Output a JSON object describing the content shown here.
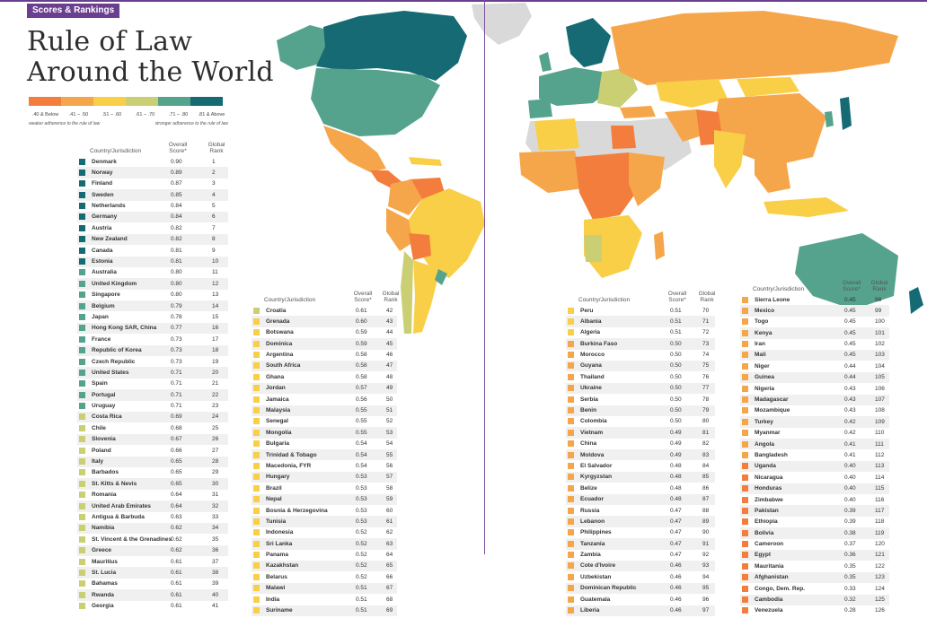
{
  "tag": "Scores & Rankings",
  "title_line1": "Rule of Law",
  "title_line2": "Around the World",
  "legend": {
    "ranges": [
      {
        "label": ".40 & Below",
        "color": "#f37d3c"
      },
      {
        "label": ".41 – .50",
        "color": "#f6a64a"
      },
      {
        "label": ".51 – .60",
        "color": "#f9cf47"
      },
      {
        "label": ".61 – .70",
        "color": "#c9cf72"
      },
      {
        "label": ".71 – .80",
        "color": "#55a38d"
      },
      {
        "label": ".81 & Above",
        "color": "#156a74"
      }
    ],
    "note_left": "weaker adherence to the rule of law",
    "note_right": "stronger adherence to the rule of law"
  },
  "headers": {
    "country": "Country/Jurisdiction",
    "score": "Overall Score*",
    "rank": "Global Rank"
  },
  "columns": [
    [
      [
        "Denmark",
        "0.90",
        "1"
      ],
      [
        "Norway",
        "0.89",
        "2"
      ],
      [
        "Finland",
        "0.87",
        "3"
      ],
      [
        "Sweden",
        "0.85",
        "4"
      ],
      [
        "Netherlands",
        "0.84",
        "5"
      ],
      [
        "Germany",
        "0.84",
        "6"
      ],
      [
        "Austria",
        "0.82",
        "7"
      ],
      [
        "New Zealand",
        "0.82",
        "8"
      ],
      [
        "Canada",
        "0.81",
        "9"
      ],
      [
        "Estonia",
        "0.81",
        "10"
      ],
      [
        "Australia",
        "0.80",
        "11"
      ],
      [
        "United Kingdom",
        "0.80",
        "12"
      ],
      [
        "Singapore",
        "0.80",
        "13"
      ],
      [
        "Belgium",
        "0.79",
        "14"
      ],
      [
        "Japan",
        "0.78",
        "15"
      ],
      [
        "Hong Kong SAR, China",
        "0.77",
        "16"
      ],
      [
        "France",
        "0.73",
        "17"
      ],
      [
        "Republic of Korea",
        "0.73",
        "18"
      ],
      [
        "Czech Republic",
        "0.73",
        "19"
      ],
      [
        "United States",
        "0.71",
        "20"
      ],
      [
        "Spain",
        "0.71",
        "21"
      ],
      [
        "Portugal",
        "0.71",
        "22"
      ],
      [
        "Uruguay",
        "0.71",
        "23"
      ],
      [
        "Costa Rica",
        "0.69",
        "24"
      ],
      [
        "Chile",
        "0.68",
        "25"
      ],
      [
        "Slovenia",
        "0.67",
        "26"
      ],
      [
        "Poland",
        "0.66",
        "27"
      ],
      [
        "Italy",
        "0.65",
        "28"
      ],
      [
        "Barbados",
        "0.65",
        "29"
      ],
      [
        "St. Kitts & Nevis",
        "0.65",
        "30"
      ],
      [
        "Romania",
        "0.64",
        "31"
      ],
      [
        "United Arab Emirates",
        "0.64",
        "32"
      ],
      [
        "Antigua & Barbuda",
        "0.63",
        "33"
      ],
      [
        "Namibia",
        "0.62",
        "34"
      ],
      [
        "St. Vincent & the Grenadines",
        "0.62",
        "35"
      ],
      [
        "Greece",
        "0.62",
        "36"
      ],
      [
        "Mauritius",
        "0.61",
        "37"
      ],
      [
        "St. Lucia",
        "0.61",
        "38"
      ],
      [
        "Bahamas",
        "0.61",
        "39"
      ],
      [
        "Rwanda",
        "0.61",
        "40"
      ],
      [
        "Georgia",
        "0.61",
        "41"
      ]
    ],
    [
      [
        "Croatia",
        "0.61",
        "42"
      ],
      [
        "Grenada",
        "0.60",
        "43"
      ],
      [
        "Botswana",
        "0.59",
        "44"
      ],
      [
        "Dominica",
        "0.59",
        "45"
      ],
      [
        "Argentina",
        "0.58",
        "46"
      ],
      [
        "South Africa",
        "0.58",
        "47"
      ],
      [
        "Ghana",
        "0.58",
        "48"
      ],
      [
        "Jordan",
        "0.57",
        "49"
      ],
      [
        "Jamaica",
        "0.56",
        "50"
      ],
      [
        "Malaysia",
        "0.55",
        "51"
      ],
      [
        "Senegal",
        "0.55",
        "52"
      ],
      [
        "Mongolia",
        "0.55",
        "53"
      ],
      [
        "Bulgaria",
        "0.54",
        "54"
      ],
      [
        "Trinidad & Tobago",
        "0.54",
        "55"
      ],
      [
        "Macedonia, FYR",
        "0.54",
        "56"
      ],
      [
        "Hungary",
        "0.53",
        "57"
      ],
      [
        "Brazil",
        "0.53",
        "58"
      ],
      [
        "Nepal",
        "0.53",
        "59"
      ],
      [
        "Bosnia & Herzegovina",
        "0.53",
        "60"
      ],
      [
        "Tunisia",
        "0.53",
        "61"
      ],
      [
        "Indonesia",
        "0.52",
        "62"
      ],
      [
        "Sri Lanka",
        "0.52",
        "63"
      ],
      [
        "Panama",
        "0.52",
        "64"
      ],
      [
        "Kazakhstan",
        "0.52",
        "65"
      ],
      [
        "Belarus",
        "0.52",
        "66"
      ],
      [
        "Malawi",
        "0.51",
        "67"
      ],
      [
        "India",
        "0.51",
        "68"
      ],
      [
        "Suriname",
        "0.51",
        "69"
      ]
    ],
    [
      [
        "Peru",
        "0.51",
        "70"
      ],
      [
        "Albania",
        "0.51",
        "71"
      ],
      [
        "Algeria",
        "0.51",
        "72"
      ],
      [
        "Burkina Faso",
        "0.50",
        "73"
      ],
      [
        "Morocco",
        "0.50",
        "74"
      ],
      [
        "Guyana",
        "0.50",
        "75"
      ],
      [
        "Thailand",
        "0.50",
        "76"
      ],
      [
        "Ukraine",
        "0.50",
        "77"
      ],
      [
        "Serbia",
        "0.50",
        "78"
      ],
      [
        "Benin",
        "0.50",
        "79"
      ],
      [
        "Colombia",
        "0.50",
        "80"
      ],
      [
        "Vietnam",
        "0.49",
        "81"
      ],
      [
        "China",
        "0.49",
        "82"
      ],
      [
        "Moldova",
        "0.49",
        "83"
      ],
      [
        "El Salvador",
        "0.48",
        "84"
      ],
      [
        "Kyrgyzstan",
        "0.48",
        "85"
      ],
      [
        "Belize",
        "0.48",
        "86"
      ],
      [
        "Ecuador",
        "0.48",
        "87"
      ],
      [
        "Russia",
        "0.47",
        "88"
      ],
      [
        "Lebanon",
        "0.47",
        "89"
      ],
      [
        "Philippines",
        "0.47",
        "90"
      ],
      [
        "Tanzania",
        "0.47",
        "91"
      ],
      [
        "Zambia",
        "0.47",
        "92"
      ],
      [
        "Cote d'Ivoire",
        "0.46",
        "93"
      ],
      [
        "Uzbekistan",
        "0.46",
        "94"
      ],
      [
        "Dominican Republic",
        "0.46",
        "95"
      ],
      [
        "Guatemala",
        "0.46",
        "96"
      ],
      [
        "Liberia",
        "0.46",
        "97"
      ]
    ],
    [
      [
        "Sierra Leone",
        "0.45",
        "98"
      ],
      [
        "Mexico",
        "0.45",
        "99"
      ],
      [
        "Togo",
        "0.45",
        "100"
      ],
      [
        "Kenya",
        "0.45",
        "101"
      ],
      [
        "Iran",
        "0.45",
        "102"
      ],
      [
        "Mali",
        "0.45",
        "103"
      ],
      [
        "Niger",
        "0.44",
        "104"
      ],
      [
        "Guinea",
        "0.44",
        "105"
      ],
      [
        "Nigeria",
        "0.43",
        "106"
      ],
      [
        "Madagascar",
        "0.43",
        "107"
      ],
      [
        "Mozambique",
        "0.43",
        "108"
      ],
      [
        "Turkey",
        "0.42",
        "109"
      ],
      [
        "Myanmar",
        "0.42",
        "110"
      ],
      [
        "Angola",
        "0.41",
        "111"
      ],
      [
        "Bangladesh",
        "0.41",
        "112"
      ],
      [
        "Uganda",
        "0.40",
        "113"
      ],
      [
        "Nicaragua",
        "0.40",
        "114"
      ],
      [
        "Honduras",
        "0.40",
        "115"
      ],
      [
        "Zimbabwe",
        "0.40",
        "116"
      ],
      [
        "Pakistan",
        "0.39",
        "117"
      ],
      [
        "Ethiopia",
        "0.39",
        "118"
      ],
      [
        "Bolivia",
        "0.38",
        "119"
      ],
      [
        "Cameroon",
        "0.37",
        "120"
      ],
      [
        "Egypt",
        "0.36",
        "121"
      ],
      [
        "Mauritania",
        "0.35",
        "122"
      ],
      [
        "Afghanistan",
        "0.35",
        "123"
      ],
      [
        "Congo, Dem. Rep.",
        "0.33",
        "124"
      ],
      [
        "Cambodia",
        "0.32",
        "125"
      ],
      [
        "Venezuela",
        "0.28",
        "126"
      ]
    ]
  ],
  "map_colors": {
    "ocean": "#ffffff",
    "no_data": "#d9d9d9"
  }
}
